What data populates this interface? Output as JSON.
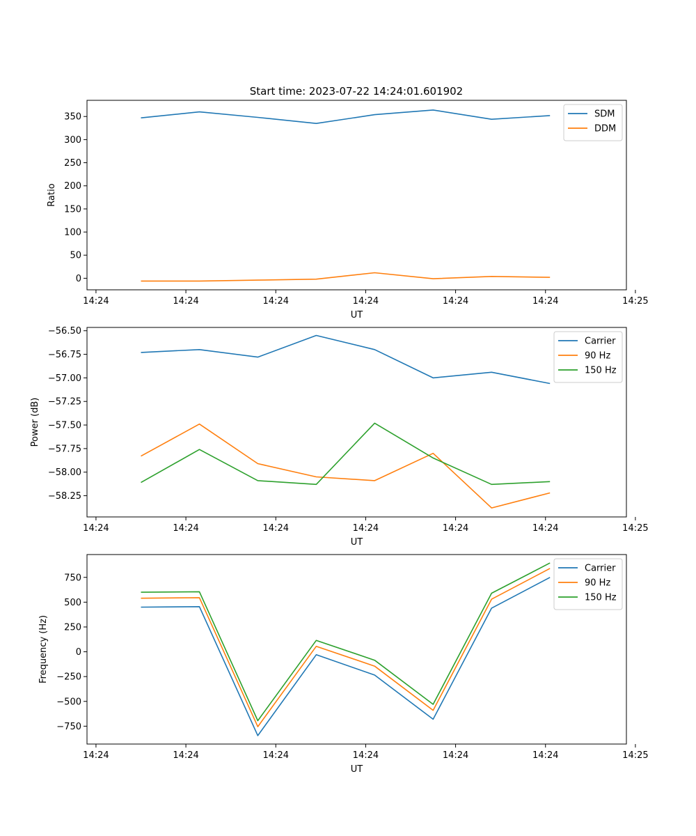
{
  "figure_title": "Start time: 2023-07-22 14:24:01.601902",
  "colors": {
    "blue": "#1f77b4",
    "orange": "#ff7f0e",
    "green": "#2ca02c"
  },
  "chart_data": [
    {
      "type": "line",
      "title": "Start time: 2023-07-22 14:24:01.601902",
      "xlabel": "UT",
      "ylabel": "Ratio",
      "xlim": [
        -0.6,
        5.4
      ],
      "ylim": [
        -25,
        385
      ],
      "x": [
        0.0,
        0.65,
        1.3,
        1.95,
        2.6,
        3.25,
        3.9,
        4.55
      ],
      "xticks": [
        -0.5,
        0.5,
        1.5,
        2.5,
        3.5,
        4.5,
        5.5
      ],
      "xtick_labels": [
        "14:24",
        "14:24",
        "14:24",
        "14:24",
        "14:24",
        "14:24",
        "14:25"
      ],
      "yticks": [
        0,
        50,
        100,
        150,
        200,
        250,
        300,
        350
      ],
      "ytick_labels": [
        "0",
        "50",
        "100",
        "150",
        "200",
        "250",
        "300",
        "350"
      ],
      "legend": "upper right",
      "series": [
        {
          "name": "SDM",
          "color": "#1f77b4",
          "values": [
            347,
            360,
            348,
            335,
            354,
            364,
            344,
            352
          ]
        },
        {
          "name": "DDM",
          "color": "#ff7f0e",
          "values": [
            -6,
            -6,
            -4,
            -2,
            12,
            -1,
            4,
            2
          ]
        }
      ]
    },
    {
      "type": "line",
      "title": "",
      "xlabel": "UT",
      "ylabel": "Power (dB)",
      "xlim": [
        -0.6,
        5.4
      ],
      "ylim": [
        -58.475,
        -56.465
      ],
      "x": [
        0.0,
        0.65,
        1.3,
        1.95,
        2.6,
        3.25,
        3.9,
        4.55
      ],
      "xticks": [
        -0.5,
        0.5,
        1.5,
        2.5,
        3.5,
        4.5,
        5.5
      ],
      "xtick_labels": [
        "14:24",
        "14:24",
        "14:24",
        "14:24",
        "14:24",
        "14:24",
        "14:25"
      ],
      "yticks": [
        -58.25,
        -58.0,
        -57.75,
        -57.5,
        -57.25,
        -57.0,
        -56.75,
        -56.5
      ],
      "ytick_labels": [
        "−58.25",
        "−58.00",
        "−57.75",
        "−57.50",
        "−57.25",
        "−57.00",
        "−56.75",
        "−56.50"
      ],
      "legend": "upper right",
      "series": [
        {
          "name": "Carrier",
          "color": "#1f77b4",
          "values": [
            -56.73,
            -56.7,
            -56.78,
            -56.55,
            -56.7,
            -57.0,
            -56.94,
            -57.06
          ]
        },
        {
          "name": "90 Hz",
          "color": "#ff7f0e",
          "values": [
            -57.83,
            -57.49,
            -57.91,
            -58.05,
            -58.09,
            -57.8,
            -58.38,
            -58.22
          ]
        },
        {
          "name": "150 Hz",
          "color": "#2ca02c",
          "values": [
            -58.11,
            -57.76,
            -58.09,
            -58.13,
            -57.48,
            -57.85,
            -58.13,
            -58.1
          ]
        }
      ]
    },
    {
      "type": "line",
      "title": "",
      "xlabel": "UT",
      "ylabel": "Frequency (Hz)",
      "xlim": [
        -0.6,
        5.4
      ],
      "ylim": [
        -930,
        980
      ],
      "x": [
        0.0,
        0.65,
        1.3,
        1.95,
        2.6,
        3.25,
        3.9,
        4.55
      ],
      "xticks": [
        -0.5,
        0.5,
        1.5,
        2.5,
        3.5,
        4.5,
        5.5
      ],
      "xtick_labels": [
        "14:24",
        "14:24",
        "14:24",
        "14:24",
        "14:24",
        "14:24",
        "14:25"
      ],
      "yticks": [
        -750,
        -500,
        -250,
        0,
        250,
        500,
        750
      ],
      "ytick_labels": [
        "−750",
        "−500",
        "−250",
        "0",
        "250",
        "500",
        "750"
      ],
      "legend": "upper right",
      "series": [
        {
          "name": "Carrier",
          "color": "#1f77b4",
          "values": [
            450,
            455,
            -845,
            -30,
            -235,
            -680,
            440,
            750
          ]
        },
        {
          "name": "90 Hz",
          "color": "#ff7f0e",
          "values": [
            540,
            545,
            -755,
            55,
            -145,
            -590,
            530,
            840
          ]
        },
        {
          "name": "150 Hz",
          "color": "#2ca02c",
          "values": [
            600,
            605,
            -695,
            115,
            -85,
            -530,
            590,
            895
          ]
        }
      ]
    }
  ]
}
